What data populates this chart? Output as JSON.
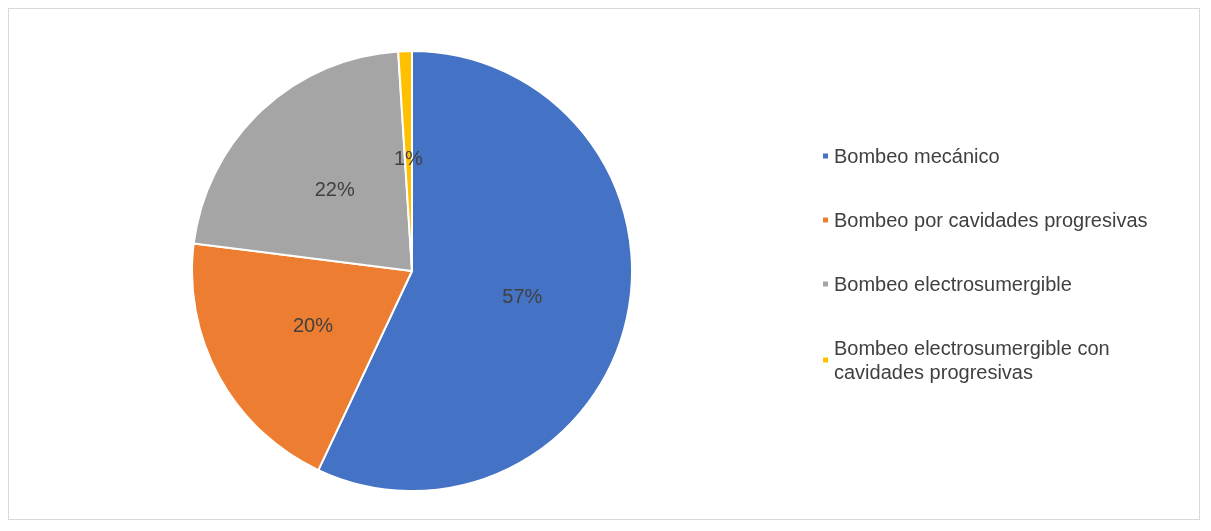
{
  "chart_data": {
    "type": "pie",
    "categories": [
      "Bombeo mecánico",
      "Bombeo por cavidades progresivas",
      "Bombeo electrosumergible",
      "Bombeo electrosumergible con cavidades progresivas"
    ],
    "values": [
      57,
      20,
      22,
      1
    ],
    "colors": [
      "#4472c4",
      "#ed7d31",
      "#a5a5a5",
      "#ffc000"
    ],
    "value_labels": [
      "57%",
      "20%",
      "22%",
      "1%"
    ],
    "legend": "right"
  }
}
